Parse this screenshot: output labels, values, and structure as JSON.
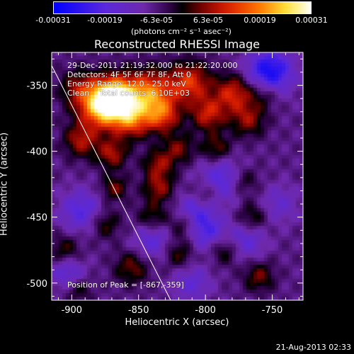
{
  "colorbar": {
    "ticks": [
      "-0.00031",
      "-0.00019",
      "-6.3e-05",
      "6.3e-05",
      "0.00019",
      "0.00031"
    ],
    "unit_label": "(photons cm⁻² s⁻¹ asec⁻²)"
  },
  "chart_data": {
    "type": "heatmap",
    "title": "Reconstructed RHESSI Image",
    "xlabel": "Heliocentric X (arcsec)",
    "ylabel": "Heliocentric Y (arcsec)",
    "xlim": [
      -915,
      -727
    ],
    "ylim": [
      -513,
      -325
    ],
    "x_ticks": [
      "-900",
      "-850",
      "-800",
      "-750"
    ],
    "x_tick_values": [
      -900,
      -850,
      -800,
      -750
    ],
    "y_ticks": [
      "-350",
      "-400",
      "-450",
      "-500"
    ],
    "y_tick_values": [
      -350,
      -400,
      -450,
      -500
    ],
    "colormap": "blue-purple-black-red-yellow-white",
    "value_range": [
      -0.00031,
      0.00031
    ],
    "peak": [
      -867,
      -359
    ],
    "limb_line": [
      [
        -915,
        -335
      ],
      [
        -826,
        -513
      ]
    ],
    "blobs": [
      {
        "x": -867,
        "y": -359,
        "amp": 1.0,
        "r": 11
      },
      {
        "x": -878,
        "y": -366,
        "amp": 0.85,
        "r": 12
      },
      {
        "x": -842,
        "y": -356,
        "amp": 0.75,
        "r": 12
      },
      {
        "x": -812,
        "y": -348,
        "amp": 0.6,
        "r": 11
      },
      {
        "x": -855,
        "y": -376,
        "amp": 0.6,
        "r": 10
      },
      {
        "x": -832,
        "y": -373,
        "amp": 0.55,
        "r": 9
      },
      {
        "x": -798,
        "y": -372,
        "amp": 0.5,
        "r": 9
      },
      {
        "x": -779,
        "y": -356,
        "amp": 0.55,
        "r": 10
      },
      {
        "x": -768,
        "y": -376,
        "amp": 0.4,
        "r": 9
      },
      {
        "x": -756,
        "y": -356,
        "amp": 0.3,
        "r": 8
      },
      {
        "x": -895,
        "y": -352,
        "amp": 0.35,
        "r": 10
      },
      {
        "x": -893,
        "y": -392,
        "amp": 0.45,
        "r": 9
      },
      {
        "x": -870,
        "y": -402,
        "amp": 0.45,
        "r": 8
      },
      {
        "x": -835,
        "y": -410,
        "amp": 0.4,
        "r": 8
      },
      {
        "x": -820,
        "y": -398,
        "amp": 0.35,
        "r": 8
      },
      {
        "x": -792,
        "y": -398,
        "amp": 0.35,
        "r": 8
      },
      {
        "x": -868,
        "y": -428,
        "amp": 0.35,
        "r": 7
      },
      {
        "x": -835,
        "y": -428,
        "amp": 0.4,
        "r": 8
      },
      {
        "x": -800,
        "y": -432,
        "amp": 0.3,
        "r": 8
      },
      {
        "x": -772,
        "y": -423,
        "amp": 0.3,
        "r": 8
      },
      {
        "x": -875,
        "y": -455,
        "amp": 0.3,
        "r": 8
      },
      {
        "x": -840,
        "y": -450,
        "amp": 0.3,
        "r": 8
      },
      {
        "x": -815,
        "y": -455,
        "amp": 0.35,
        "r": 8
      },
      {
        "x": -765,
        "y": -450,
        "amp": 0.3,
        "r": 8
      },
      {
        "x": -905,
        "y": -475,
        "amp": 0.3,
        "r": 8
      },
      {
        "x": -855,
        "y": -488,
        "amp": 0.35,
        "r": 9
      },
      {
        "x": -820,
        "y": -478,
        "amp": 0.3,
        "r": 8
      },
      {
        "x": -785,
        "y": -475,
        "amp": 0.3,
        "r": 8
      },
      {
        "x": -760,
        "y": -495,
        "amp": 0.35,
        "r": 8
      },
      {
        "x": -895,
        "y": -505,
        "amp": 0.25,
        "r": 7
      },
      {
        "x": -752,
        "y": -340,
        "amp": -0.7,
        "r": 12
      },
      {
        "x": -788,
        "y": -422,
        "amp": -0.45,
        "r": 12
      },
      {
        "x": -893,
        "y": -445,
        "amp": -0.4,
        "r": 11
      },
      {
        "x": -810,
        "y": -445,
        "amp": -0.4,
        "r": 9
      },
      {
        "x": -800,
        "y": -460,
        "amp": -0.45,
        "r": 10
      },
      {
        "x": -840,
        "y": -468,
        "amp": -0.35,
        "r": 10
      },
      {
        "x": -903,
        "y": -492,
        "amp": -0.35,
        "r": 9
      },
      {
        "x": -770,
        "y": -468,
        "amp": -0.35,
        "r": 10
      },
      {
        "x": -810,
        "y": -500,
        "amp": -0.3,
        "r": 10
      },
      {
        "x": -745,
        "y": -440,
        "amp": -0.25,
        "r": 10
      }
    ]
  },
  "info": {
    "line1": "29-Dec-2011 21:19:32.000 to 21:22:20.000",
    "line2": "Detectors: 4F 5F 6F 7F 8F, Att 0",
    "line3": "Energy Range: 12.0 - 25.0 keV",
    "line4": "Clean    Total counts: 6.10E+03",
    "peak_label": "Position of Peak = [-867,-359]"
  },
  "footer": "21-Aug-2013 02:33"
}
